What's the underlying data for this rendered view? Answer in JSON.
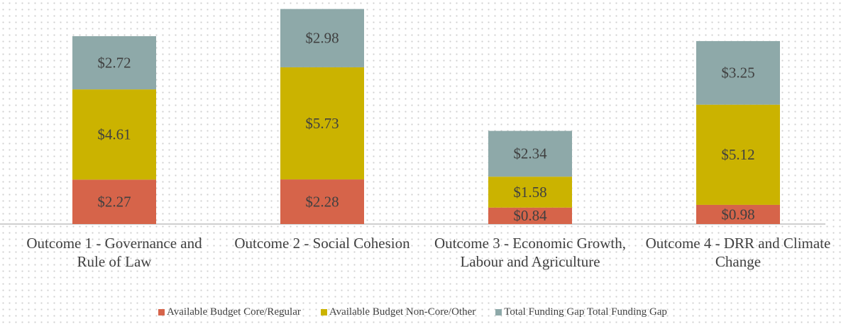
{
  "chart_data": {
    "type": "stacked_bar",
    "categories": [
      "Outcome 1 - Governance and Rule of Law",
      "Outcome 2 - Social Cohesion",
      "Outcome 3 - Economic Growth, Labour and Agriculture",
      "Outcome 4 - DRR and Climate Change"
    ],
    "series": [
      {
        "name": "Available Budget Core/Regular",
        "color": "#d6644a",
        "values": [
          2.27,
          2.28,
          0.84,
          0.98
        ],
        "value_labels": [
          "$2.27",
          "$2.28",
          "$0.84",
          "$0.98"
        ]
      },
      {
        "name": "Available Budget Non-Core/Other",
        "color": "#cbb300",
        "values": [
          4.61,
          5.73,
          1.58,
          5.12
        ],
        "value_labels": [
          "$4.61",
          "$5.73",
          "$1.58",
          "$5.12"
        ]
      },
      {
        "name": "Total Funding Gap Total Funding Gap",
        "color": "#8ea9a9",
        "values": [
          2.72,
          2.98,
          2.34,
          3.25
        ],
        "value_labels": [
          "$2.72",
          "$2.98",
          "$2.34",
          "$3.25"
        ]
      }
    ],
    "legend": "bottom"
  }
}
